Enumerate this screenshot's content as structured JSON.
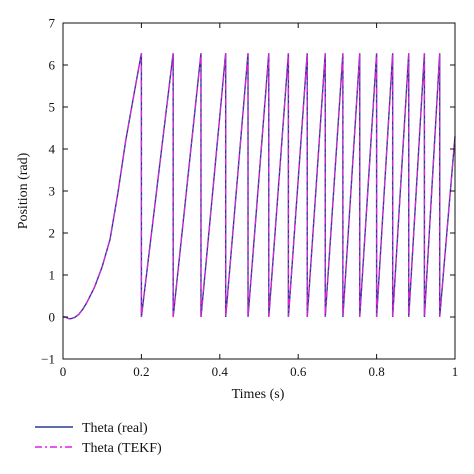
{
  "chart_data": {
    "type": "line",
    "xlabel": "Times (s)",
    "ylabel": "Position (rad)",
    "xlim": [
      0,
      1
    ],
    "ylim": [
      -1,
      7
    ],
    "grid": false,
    "legend_placement": "bottom-left, below plot",
    "x_ticks": [
      "0",
      "0.2",
      "0.4",
      "0.6",
      "0.8",
      "1"
    ],
    "y_ticks": [
      "−1",
      "0",
      "1",
      "2",
      "3",
      "4",
      "5",
      "6",
      "7"
    ],
    "series": [
      {
        "name": "Theta (real)",
        "color": "#2b3a8f",
        "style": "solid",
        "x": [
          0,
          0.005,
          0.01,
          0.015,
          0.02,
          0.03,
          0.04,
          0.05,
          0.06,
          0.08,
          0.1,
          0.12,
          0.14,
          0.16,
          0.18,
          0.2,
          0.2,
          0.281,
          0.281,
          0.352,
          0.352,
          0.415,
          0.415,
          0.472,
          0.472,
          0.525,
          0.525,
          0.575,
          0.575,
          0.623,
          0.623,
          0.669,
          0.669,
          0.714,
          0.714,
          0.757,
          0.757,
          0.8,
          0.8,
          0.841,
          0.841,
          0.882,
          0.882,
          0.922,
          0.922,
          0.961,
          0.961,
          1.0
        ],
        "y": [
          0,
          0,
          -0.02,
          -0.04,
          -0.04,
          -0.01,
          0.06,
          0.18,
          0.33,
          0.7,
          1.2,
          1.85,
          2.95,
          4.2,
          5.25,
          6.28,
          0,
          6.28,
          0,
          6.28,
          0,
          6.28,
          0,
          6.28,
          0,
          6.28,
          0,
          6.28,
          0,
          6.28,
          0,
          6.28,
          0,
          6.28,
          0,
          6.28,
          0,
          6.28,
          0,
          6.28,
          0,
          6.28,
          0,
          6.28,
          0,
          6.28,
          0,
          4.3
        ]
      },
      {
        "name": "Theta (TEKF)",
        "color": "#e020e0",
        "style": "dash-dot",
        "x": [
          0,
          0.005,
          0.01,
          0.015,
          0.02,
          0.03,
          0.04,
          0.05,
          0.06,
          0.08,
          0.1,
          0.12,
          0.14,
          0.16,
          0.18,
          0.2,
          0.2,
          0.281,
          0.281,
          0.352,
          0.352,
          0.415,
          0.415,
          0.472,
          0.472,
          0.525,
          0.525,
          0.575,
          0.575,
          0.623,
          0.623,
          0.669,
          0.669,
          0.714,
          0.714,
          0.757,
          0.757,
          0.8,
          0.8,
          0.841,
          0.841,
          0.882,
          0.882,
          0.922,
          0.922,
          0.961,
          0.961,
          1.0
        ],
        "y": [
          0,
          0,
          -0.02,
          -0.04,
          -0.04,
          -0.01,
          0.06,
          0.18,
          0.33,
          0.7,
          1.2,
          1.85,
          2.95,
          4.2,
          5.25,
          6.28,
          0,
          6.28,
          0,
          6.28,
          0,
          6.28,
          0,
          6.28,
          0,
          6.28,
          0,
          6.28,
          0,
          6.28,
          0,
          6.28,
          0,
          6.28,
          0,
          6.28,
          0,
          6.28,
          0,
          6.28,
          0,
          6.28,
          0,
          6.28,
          0,
          6.28,
          0,
          4.3
        ]
      }
    ]
  }
}
